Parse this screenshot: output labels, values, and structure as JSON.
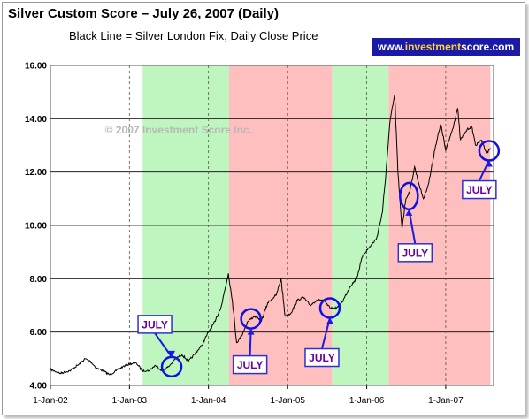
{
  "header": {
    "title": "Silver Custom Score – July 26, 2007 (Daily)",
    "subtitle": "Black Line = Silver London Fix, Daily Close Price",
    "badge_pre": "www.",
    "badge_accent": "investment",
    "badge_post": "score.com"
  },
  "watermark": "© 2007 Investment Score Inc.",
  "chart_data": {
    "type": "line",
    "title": "Silver Custom Score – July 26, 2007 (Daily)",
    "subtitle": "Black Line = Silver London Fix, Daily Close Price",
    "ylim": [
      4.0,
      16.0
    ],
    "y_ticks": [
      "4.00",
      "6.00",
      "8.00",
      "10.00",
      "12.00",
      "14.00",
      "16.00"
    ],
    "x_ticks": [
      "1-Jan-02",
      "1-Jan-03",
      "1-Jan-04",
      "1-Jan-05",
      "1-Jan-06",
      "1-Jan-07"
    ],
    "xlim": [
      "2002-01-01",
      "2007-08-10"
    ],
    "grid": "horizontal",
    "series": [
      {
        "name": "Silver London Fix, Daily Close Price",
        "color": "#000000",
        "points": [
          [
            "2002-01-01",
            4.6
          ],
          [
            "2002-02-15",
            4.45
          ],
          [
            "2002-04-01",
            4.55
          ],
          [
            "2002-05-15",
            4.8
          ],
          [
            "2002-06-10",
            5.0
          ],
          [
            "2002-07-05",
            4.9
          ],
          [
            "2002-08-01",
            4.65
          ],
          [
            "2002-09-01",
            4.55
          ],
          [
            "2002-10-01",
            4.4
          ],
          [
            "2002-11-01",
            4.55
          ],
          [
            "2002-12-01",
            4.7
          ],
          [
            "2003-01-01",
            4.8
          ],
          [
            "2003-02-01",
            4.85
          ],
          [
            "2003-03-01",
            4.55
          ],
          [
            "2003-04-01",
            4.55
          ],
          [
            "2003-05-01",
            4.75
          ],
          [
            "2003-06-01",
            4.55
          ],
          [
            "2003-07-01",
            4.7
          ],
          [
            "2003-08-01",
            5.0
          ],
          [
            "2003-09-01",
            5.15
          ],
          [
            "2003-10-01",
            4.9
          ],
          [
            "2003-11-01",
            5.2
          ],
          [
            "2003-12-01",
            5.5
          ],
          [
            "2004-01-01",
            6.0
          ],
          [
            "2004-02-01",
            6.4
          ],
          [
            "2004-03-01",
            7.0
          ],
          [
            "2004-04-02",
            8.2
          ],
          [
            "2004-04-20",
            7.2
          ],
          [
            "2004-05-10",
            5.6
          ],
          [
            "2004-06-01",
            5.85
          ],
          [
            "2004-07-01",
            6.4
          ],
          [
            "2004-08-01",
            6.6
          ],
          [
            "2004-09-01",
            6.4
          ],
          [
            "2004-10-01",
            7.1
          ],
          [
            "2004-11-10",
            7.4
          ],
          [
            "2004-12-01",
            8.0
          ],
          [
            "2004-12-20",
            6.6
          ],
          [
            "2005-01-15",
            6.7
          ],
          [
            "2005-02-15",
            7.2
          ],
          [
            "2005-03-15",
            7.3
          ],
          [
            "2005-04-15",
            7.0
          ],
          [
            "2005-05-15",
            7.2
          ],
          [
            "2005-06-15",
            7.2
          ],
          [
            "2005-07-15",
            6.9
          ],
          [
            "2005-08-15",
            6.9
          ],
          [
            "2005-09-15",
            7.2
          ],
          [
            "2005-10-15",
            7.7
          ],
          [
            "2005-11-15",
            8.0
          ],
          [
            "2005-12-15",
            8.9
          ],
          [
            "2006-01-15",
            9.2
          ],
          [
            "2006-02-15",
            9.5
          ],
          [
            "2006-03-15",
            10.5
          ],
          [
            "2006-04-05",
            12.5
          ],
          [
            "2006-04-20",
            14.0
          ],
          [
            "2006-05-10",
            14.9
          ],
          [
            "2006-05-25",
            12.0
          ],
          [
            "2006-06-13",
            9.9
          ],
          [
            "2006-07-01",
            11.0
          ],
          [
            "2006-07-20",
            11.3
          ],
          [
            "2006-08-10",
            12.2
          ],
          [
            "2006-09-01",
            11.5
          ],
          [
            "2006-09-20",
            11.0
          ],
          [
            "2006-10-15",
            11.6
          ],
          [
            "2006-11-15",
            13.0
          ],
          [
            "2006-12-10",
            13.8
          ],
          [
            "2007-01-01",
            12.8
          ],
          [
            "2007-02-01",
            13.6
          ],
          [
            "2007-02-25",
            14.4
          ],
          [
            "2007-03-10",
            13.2
          ],
          [
            "2007-04-10",
            13.6
          ],
          [
            "2007-05-01",
            13.7
          ],
          [
            "2007-05-20",
            13.0
          ],
          [
            "2007-06-15",
            13.2
          ],
          [
            "2007-07-10",
            12.7
          ],
          [
            "2007-07-26",
            12.9
          ]
        ]
      }
    ],
    "bands": [
      {
        "start": "2003-03-03",
        "end": "2004-04-05",
        "color": "#bff5bf"
      },
      {
        "start": "2004-04-05",
        "end": "2005-07-25",
        "color": "#ffbfbf"
      },
      {
        "start": "2005-07-25",
        "end": "2006-04-12",
        "color": "#bff5bf"
      },
      {
        "start": "2006-04-12",
        "end": "2007-07-26",
        "color": "#ffbfbf"
      }
    ],
    "annotations": [
      {
        "label": "JULY",
        "target_date": "2003-07-15",
        "target_value": 4.7
      },
      {
        "label": "JULY",
        "target_date": "2004-07-15",
        "target_value": 6.5
      },
      {
        "label": "JULY",
        "target_date": "2005-07-15",
        "target_value": 6.9
      },
      {
        "label": "JULY",
        "target_date": "2006-07-15",
        "target_value": 11.1
      },
      {
        "label": "JULY",
        "target_date": "2007-07-20",
        "target_value": 12.8
      }
    ]
  }
}
